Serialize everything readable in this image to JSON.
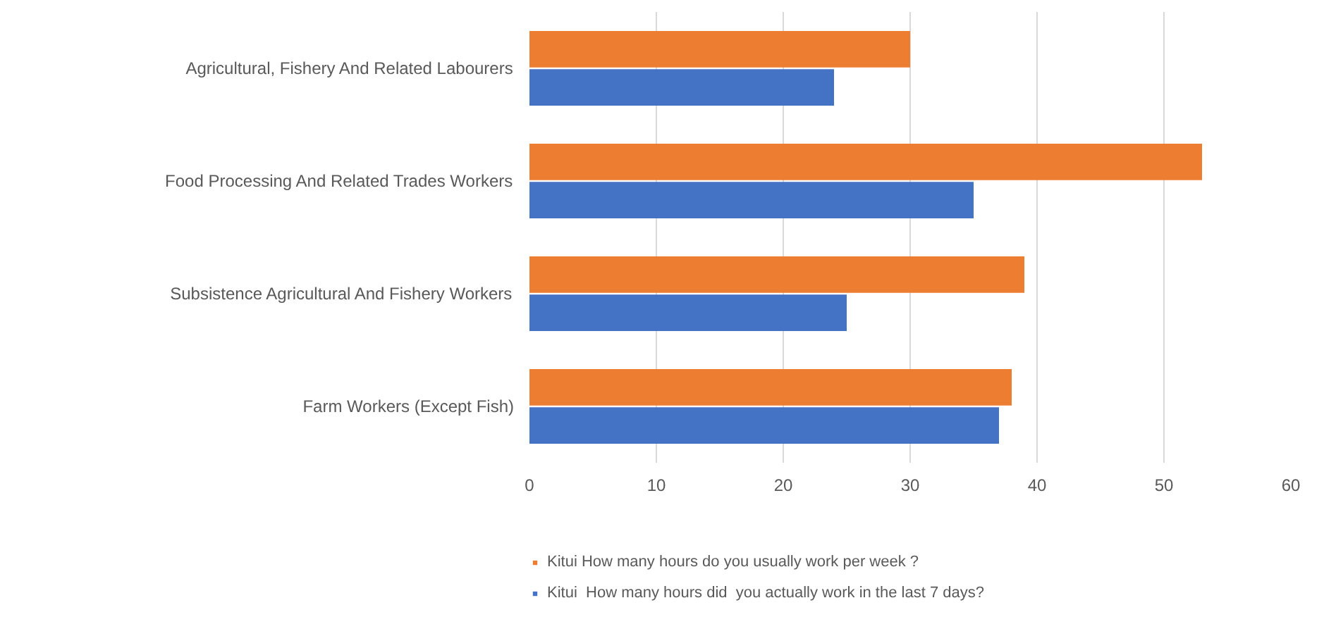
{
  "chart_data": {
    "type": "bar",
    "orientation": "horizontal",
    "categories": [
      "Agricultural, Fishery And Related Labourers",
      "Food Processing And Related Trades Workers",
      "Subsistence Agricultural And Fishery Workers",
      "Farm Workers (Except Fish)"
    ],
    "series": [
      {
        "name": "Kitui How many hours do you usually work per week ?",
        "color": "#ed7d31",
        "values": [
          30,
          53,
          39,
          38
        ]
      },
      {
        "name": "Kitui  How many hours did  you actually work in the last 7 days?",
        "color": "#4472c4",
        "values": [
          24,
          35,
          25,
          37
        ]
      }
    ],
    "xlim": [
      0,
      60
    ],
    "xticks": [
      0,
      10,
      20,
      30,
      40,
      50,
      60
    ],
    "grid": "x",
    "legend": "bottom"
  }
}
